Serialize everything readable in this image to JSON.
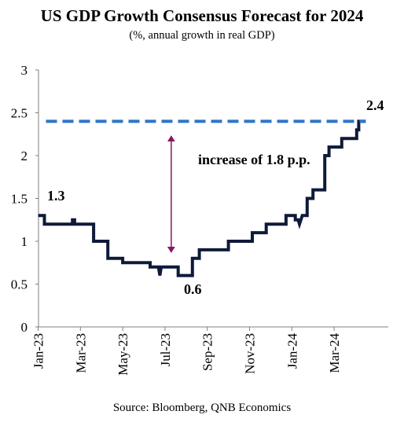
{
  "title": "US GDP Growth Consensus Forecast for 2024",
  "subtitle": "(%, annual growth in real GDP)",
  "source": "Source: Bloomberg, QNB Economics",
  "chart_data": {
    "type": "line",
    "title": "US GDP Growth Consensus Forecast for 2024",
    "subtitle": "(%, annual growth in real GDP)",
    "xlabel": "",
    "ylabel": "",
    "ylim": [
      0,
      3
    ],
    "yticks": [
      "0",
      "0.5",
      "1",
      "1.5",
      "2",
      "2.5",
      "3"
    ],
    "xticks": [
      "Jan-23",
      "Mar-23",
      "May-23",
      "Jul-23",
      "Sep-23",
      "Nov-23",
      "Jan-24",
      "Mar-24"
    ],
    "x_range": [
      "2023-01-01",
      "2024-05-01"
    ],
    "grid": false,
    "series": [
      {
        "color": "#0f1a3a",
        "x": [
          "2023-01-01",
          "2023-01-10",
          "2023-01-10",
          "2023-02-20",
          "2023-02-20",
          "2023-02-23",
          "2023-02-23",
          "2023-03-20",
          "2023-03-20",
          "2023-04-10",
          "2023-04-10",
          "2023-05-01",
          "2023-05-01",
          "2023-06-10",
          "2023-06-10",
          "2023-06-22",
          "2023-06-24",
          "2023-06-26",
          "2023-06-26",
          "2023-07-20",
          "2023-07-20",
          "2023-08-10",
          "2023-08-10",
          "2023-08-20",
          "2023-08-20",
          "2023-08-26",
          "2023-08-26",
          "2023-10-01",
          "2023-10-01",
          "2023-11-05",
          "2023-11-05",
          "2023-11-25",
          "2023-11-25",
          "2023-12-05",
          "2023-12-05",
          "2023-12-23",
          "2023-12-23",
          "2024-01-06",
          "2024-01-06",
          "2024-01-10",
          "2024-01-12",
          "2024-01-16",
          "2024-01-16",
          "2024-01-23",
          "2024-01-23",
          "2024-02-01",
          "2024-02-01",
          "2024-02-18",
          "2024-02-18",
          "2024-02-24",
          "2024-02-24",
          "2024-03-12",
          "2024-03-12",
          "2024-04-03",
          "2024-04-03",
          "2024-04-06",
          "2024-04-06",
          "2024-04-16"
        ],
        "values": [
          1.3,
          1.3,
          1.2,
          1.2,
          1.25,
          1.25,
          1.2,
          1.2,
          1.0,
          1.0,
          0.8,
          0.8,
          0.75,
          0.75,
          0.7,
          0.7,
          0.6,
          0.7,
          0.7,
          0.7,
          0.6,
          0.6,
          0.8,
          0.8,
          0.9,
          0.9,
          0.9,
          0.9,
          1.0,
          1.0,
          1.1,
          1.1,
          1.2,
          1.2,
          1.2,
          1.2,
          1.3,
          1.3,
          1.25,
          1.25,
          1.2,
          1.3,
          1.3,
          1.3,
          1.5,
          1.5,
          1.6,
          1.6,
          2.0,
          2.0,
          2.1,
          2.1,
          2.2,
          2.2,
          2.3,
          2.3,
          2.4,
          2.4
        ]
      },
      {
        "color": "#2e75c8",
        "style": "dashed",
        "x": [
          "2023-01-01",
          "2024-04-16"
        ],
        "values": [
          2.4,
          2.4
        ]
      }
    ],
    "annotations": [
      {
        "text": "1.3",
        "x": "2023-01-01",
        "y": 1.3
      },
      {
        "text": "2.4",
        "x": "2024-04-16",
        "y": 2.4
      },
      {
        "text": "0.6",
        "x": "2023-07-25",
        "y": 0.6
      },
      {
        "text": "increase of 1.8 p.p.",
        "x": "2023-07-10",
        "y": 1.95
      }
    ],
    "arrow": {
      "color": "#8b1560",
      "x": "2023-07-10",
      "from": 0.9,
      "to": 2.2
    }
  }
}
